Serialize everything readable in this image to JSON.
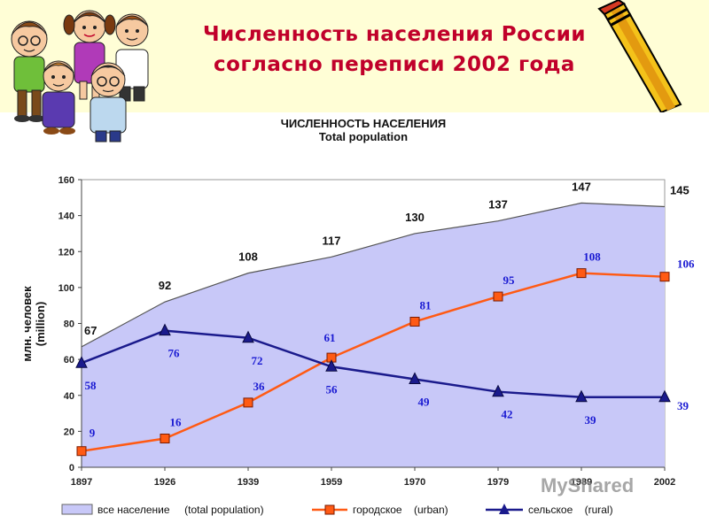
{
  "slide": {
    "title_line1": "Численность населения России",
    "title_line2": "согласно переписи 2002 года"
  },
  "watermark": "MyShared",
  "icons": [
    "children-clipart-icon",
    "pencil-icon"
  ],
  "colors": {
    "banner": "#fffed6",
    "title": "#c0002a",
    "area_fill": "#c8c8f8",
    "total_line": "#555555",
    "urban": "#ff5a14",
    "rural": "#1a1a8c",
    "label_blue": "#1a1ad2"
  },
  "chart_data": {
    "type": "line",
    "title": "ЧИСЛЕННОСТЬ НАСЕЛЕНИЯ",
    "subtitle": "Total population",
    "ylabel": "млн. человек",
    "ylabel_sub": "(million)",
    "xlabel": "",
    "ylim": [
      0,
      160
    ],
    "yticks": [
      0,
      20,
      40,
      60,
      80,
      100,
      120,
      140,
      160
    ],
    "grid": false,
    "legend_position": "bottom",
    "x": [
      "1897",
      "1926",
      "1939",
      "1959",
      "1970",
      "1979",
      "1989",
      "2002"
    ],
    "series": [
      {
        "key": "total",
        "kind": "area",
        "name": "все население     (total population)",
        "values": [
          67,
          92,
          108,
          117,
          130,
          137,
          147,
          145
        ]
      },
      {
        "key": "urban",
        "kind": "line",
        "marker": "square",
        "name": "городское    (urban)",
        "values": [
          9,
          16,
          36,
          61,
          81,
          95,
          108,
          106
        ]
      },
      {
        "key": "rural",
        "kind": "line",
        "marker": "triangle",
        "name": "сельское    (rural)",
        "values": [
          58,
          76,
          72,
          56,
          49,
          42,
          39,
          39
        ]
      }
    ]
  }
}
